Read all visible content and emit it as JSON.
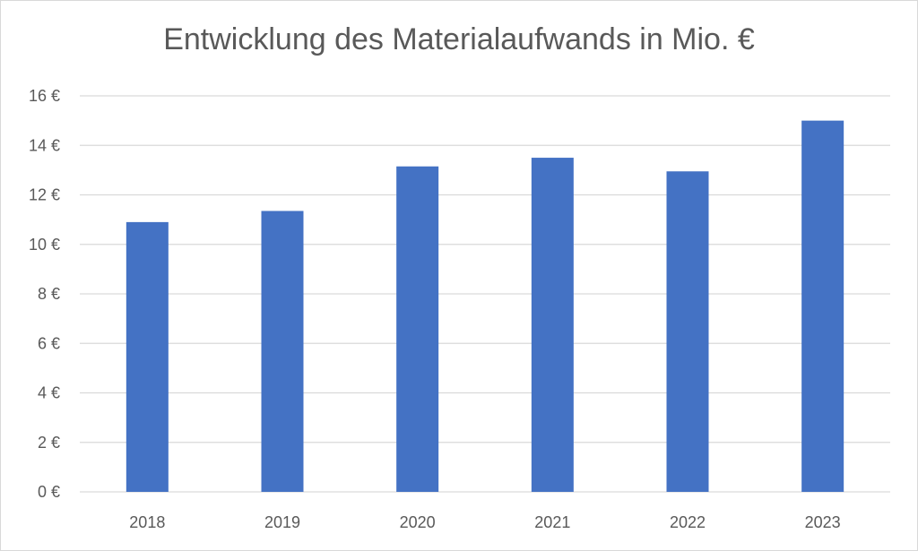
{
  "chart_data": {
    "type": "bar",
    "title": "Entwicklung des Materialaufwands in Mio. €",
    "xlabel": "",
    "ylabel": "",
    "categories": [
      "2018",
      "2019",
      "2020",
      "2021",
      "2022",
      "2023"
    ],
    "values": [
      10.9,
      11.35,
      13.15,
      13.5,
      12.95,
      15.0
    ],
    "ylim": [
      0,
      16
    ],
    "yticks": [
      0,
      2,
      4,
      6,
      8,
      10,
      12,
      14,
      16
    ],
    "ytick_suffix": " €",
    "grid": true,
    "legend": "none",
    "bar_color": "#4472c4",
    "grid_color": "#d9d9d9",
    "text_color": "#595959"
  }
}
